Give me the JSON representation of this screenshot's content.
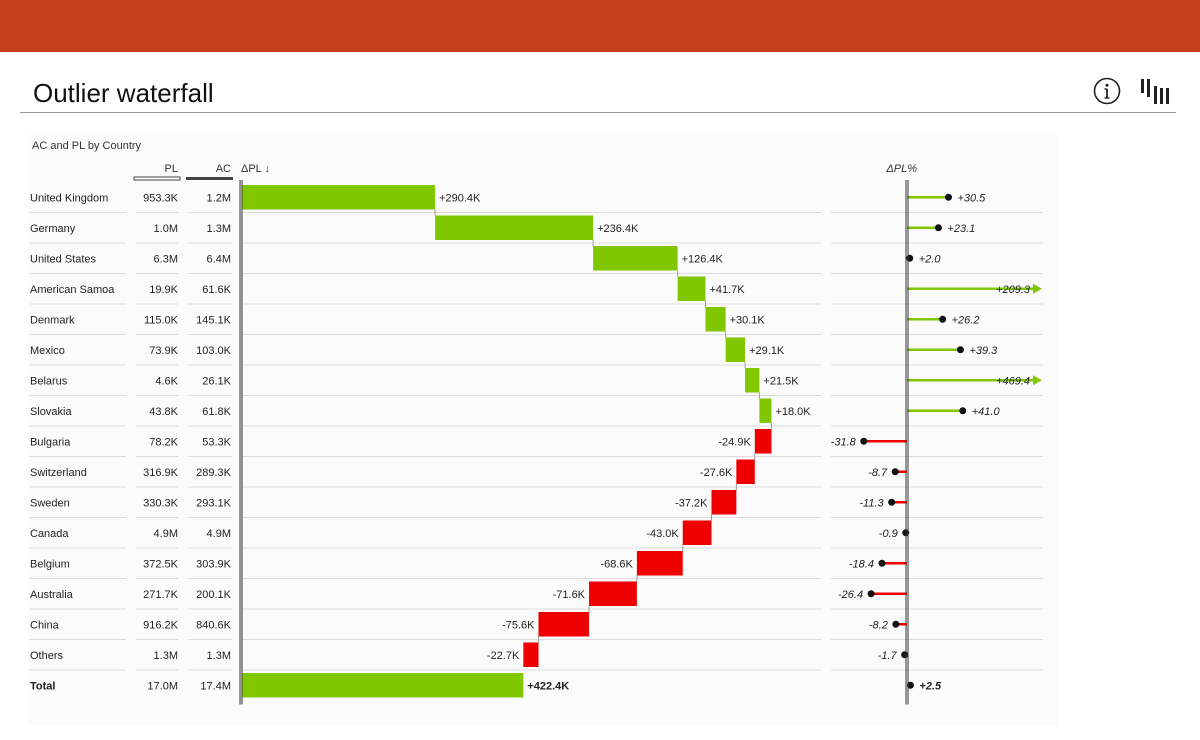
{
  "page": {
    "title": "Outlier waterfall",
    "accent_color": "#c4401f",
    "icons": [
      "info-icon",
      "zebra-bi-logo-icon"
    ]
  },
  "chart_data": {
    "type": "bar",
    "subtitle": "AC and PL by Country",
    "columns": {
      "pl": "PL",
      "ac": "AC",
      "delta": "ΔPL ↓",
      "delta_pct": "ΔPL%"
    },
    "colors": {
      "positive": "#80c700",
      "negative": "#ee0000"
    },
    "rows": [
      {
        "country": "United Kingdom",
        "pl": "953.3K",
        "ac": "1.2M",
        "delta": 290.4,
        "delta_label": "+290.4K",
        "pct": 30.5,
        "pct_label": "+30.5"
      },
      {
        "country": "Germany",
        "pl": "1.0M",
        "ac": "1.3M",
        "delta": 236.4,
        "delta_label": "+236.4K",
        "pct": 23.1,
        "pct_label": "+23.1"
      },
      {
        "country": "United States",
        "pl": "6.3M",
        "ac": "6.4M",
        "delta": 126.4,
        "delta_label": "+126.4K",
        "pct": 2.0,
        "pct_label": "+2.0"
      },
      {
        "country": "American Samoa",
        "pl": "19.9K",
        "ac": "61.6K",
        "delta": 41.7,
        "delta_label": "+41.7K",
        "pct": 209.3,
        "pct_label": "+209.3",
        "outlier": true
      },
      {
        "country": "Denmark",
        "pl": "115.0K",
        "ac": "145.1K",
        "delta": 30.1,
        "delta_label": "+30.1K",
        "pct": 26.2,
        "pct_label": "+26.2"
      },
      {
        "country": "Mexico",
        "pl": "73.9K",
        "ac": "103.0K",
        "delta": 29.1,
        "delta_label": "+29.1K",
        "pct": 39.3,
        "pct_label": "+39.3"
      },
      {
        "country": "Belarus",
        "pl": "4.6K",
        "ac": "26.1K",
        "delta": 21.5,
        "delta_label": "+21.5K",
        "pct": 469.4,
        "pct_label": "+469.4",
        "outlier": true
      },
      {
        "country": "Slovakia",
        "pl": "43.8K",
        "ac": "61.8K",
        "delta": 18.0,
        "delta_label": "+18.0K",
        "pct": 41.0,
        "pct_label": "+41.0"
      },
      {
        "country": "Bulgaria",
        "pl": "78.2K",
        "ac": "53.3K",
        "delta": -24.9,
        "delta_label": "-24.9K",
        "pct": -31.8,
        "pct_label": "-31.8"
      },
      {
        "country": "Switzerland",
        "pl": "316.9K",
        "ac": "289.3K",
        "delta": -27.6,
        "delta_label": "-27.6K",
        "pct": -8.7,
        "pct_label": "-8.7"
      },
      {
        "country": "Sweden",
        "pl": "330.3K",
        "ac": "293.1K",
        "delta": -37.2,
        "delta_label": "-37.2K",
        "pct": -11.3,
        "pct_label": "-11.3"
      },
      {
        "country": "Canada",
        "pl": "4.9M",
        "ac": "4.9M",
        "delta": -43.0,
        "delta_label": "-43.0K",
        "pct": -0.9,
        "pct_label": "-0.9"
      },
      {
        "country": "Belgium",
        "pl": "372.5K",
        "ac": "303.9K",
        "delta": -68.6,
        "delta_label": "-68.6K",
        "pct": -18.4,
        "pct_label": "-18.4"
      },
      {
        "country": "Australia",
        "pl": "271.7K",
        "ac": "200.1K",
        "delta": -71.6,
        "delta_label": "-71.6K",
        "pct": -26.4,
        "pct_label": "-26.4"
      },
      {
        "country": "China",
        "pl": "916.2K",
        "ac": "840.6K",
        "delta": -75.6,
        "delta_label": "-75.6K",
        "pct": -8.2,
        "pct_label": "-8.2"
      },
      {
        "country": "Others",
        "pl": "1.3M",
        "ac": "1.3M",
        "delta": -22.7,
        "delta_label": "-22.7K",
        "pct": -1.7,
        "pct_label": "-1.7"
      }
    ],
    "total": {
      "country": "Total",
      "pl": "17.0M",
      "ac": "17.4M",
      "delta": 422.4,
      "delta_label": "+422.4K",
      "pct": 2.5,
      "pct_label": "+2.5"
    }
  }
}
